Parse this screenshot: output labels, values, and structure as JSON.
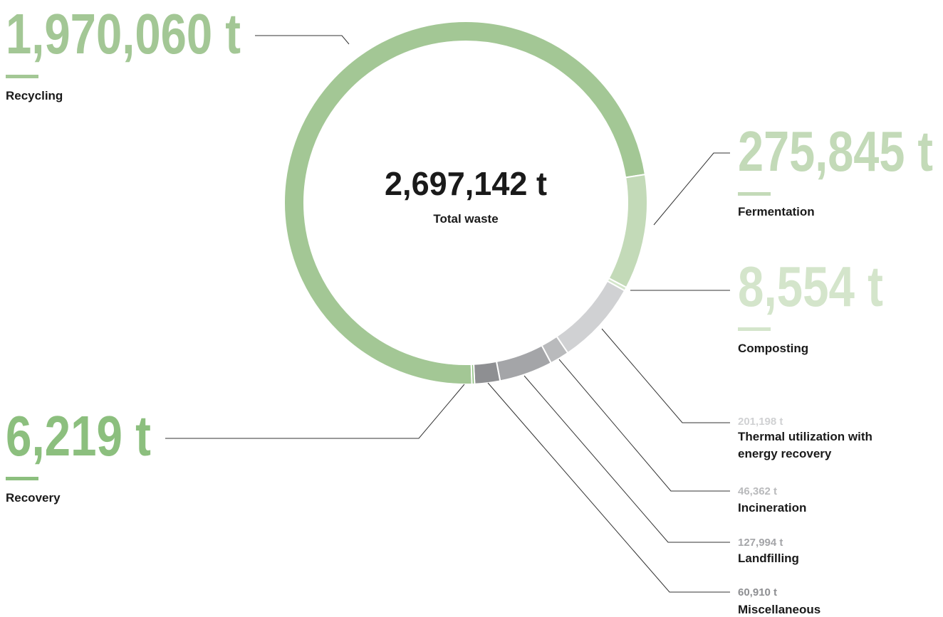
{
  "chart_data": {
    "type": "donut",
    "center": {
      "value": 2697142,
      "label": "2,697,142 t",
      "text": "Total waste"
    },
    "categories": [
      "Recycling",
      "Fermentation",
      "Composting",
      "Thermal utilization with energy recovery",
      "Incineration",
      "Landfilling",
      "Miscellaneous",
      "Recovery"
    ],
    "values": [
      1970060,
      275845,
      8554,
      201198,
      46362,
      127994,
      60910,
      6219
    ],
    "value_labels": [
      "1,970,060 t",
      "275,845 t",
      "8,554 t",
      "201,198 t",
      "46,362 t",
      "127,994 t",
      "60,910 t",
      "6,219 t"
    ],
    "colors": [
      "#a3c795",
      "#c3dab8",
      "#d4e5cb",
      "#d0d1d3",
      "#b9babc",
      "#a4a5a8",
      "#8e8f92",
      "#8cbf7e"
    ]
  }
}
